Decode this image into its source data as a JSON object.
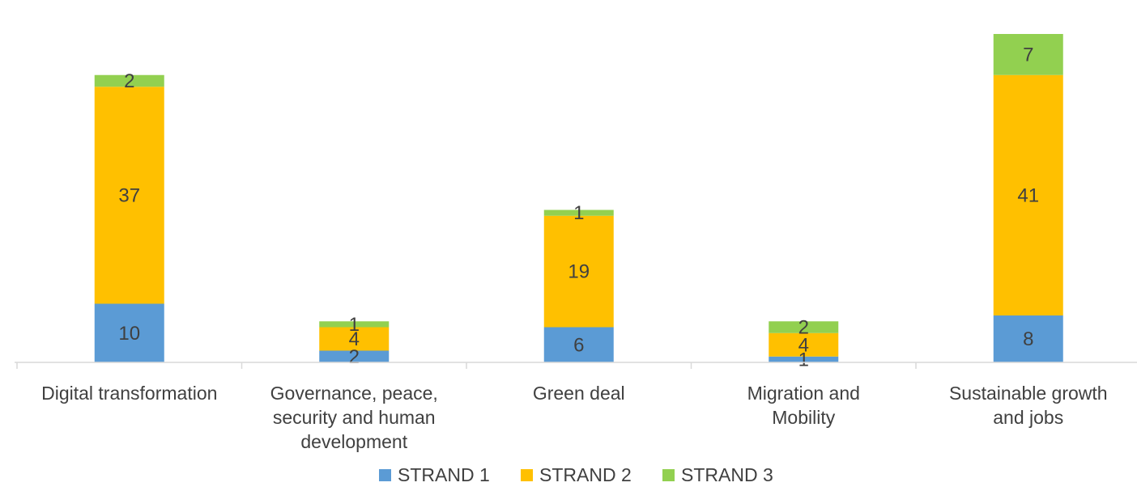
{
  "chart_data": {
    "type": "bar",
    "stacked": true,
    "title": "",
    "xlabel": "",
    "ylabel": "",
    "categories": [
      [
        "Digital transformation"
      ],
      [
        "Governance, peace,",
        "security and human",
        "development"
      ],
      [
        "Green deal"
      ],
      [
        "Migration and",
        "Mobility"
      ],
      [
        "Sustainable growth",
        "and jobs"
      ]
    ],
    "series": [
      {
        "name": "STRAND 1",
        "color": "#5b9bd5",
        "values": [
          10,
          2,
          6,
          1,
          8
        ]
      },
      {
        "name": "STRAND 2",
        "color": "#ffc000",
        "values": [
          37,
          4,
          19,
          4,
          41
        ]
      },
      {
        "name": "STRAND 3",
        "color": "#92d050",
        "values": [
          2,
          1,
          1,
          2,
          7
        ]
      }
    ],
    "data_labels": true,
    "grid": false,
    "legend": "bottom-center"
  }
}
